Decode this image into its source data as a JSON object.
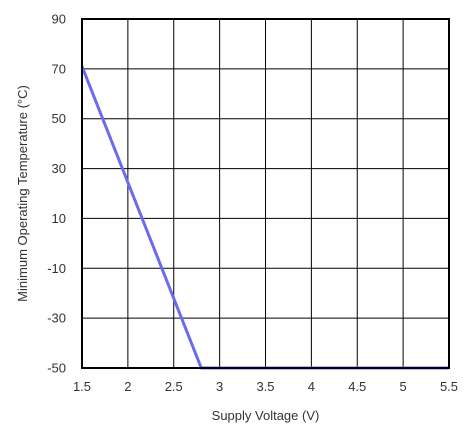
{
  "chart_data": {
    "type": "line",
    "title": "",
    "xlabel": "Supply Voltage (V)",
    "ylabel": "Minimum Operating Temperature (°C)",
    "xlim": [
      1.5,
      5.5
    ],
    "ylim": [
      -50,
      90
    ],
    "x_ticks": [
      1.5,
      2,
      2.5,
      3,
      3.5,
      4,
      4.5,
      5,
      5.5
    ],
    "x_tick_labels": [
      "1.5",
      "2",
      "2.5",
      "3",
      "3.5",
      "4",
      "4.5",
      "5",
      "5.5"
    ],
    "y_ticks": [
      90,
      70,
      50,
      30,
      10,
      -10,
      -30,
      -50
    ],
    "y_tick_labels": [
      "90",
      "70",
      "50",
      "30",
      "10",
      "-10",
      "-30",
      "-50"
    ],
    "grid": true,
    "legend": "none",
    "series": [
      {
        "color": "#6b6bf0",
        "x": [
          1.5,
          2.8,
          5.5
        ],
        "y": [
          71,
          -50,
          -50
        ]
      }
    ]
  }
}
